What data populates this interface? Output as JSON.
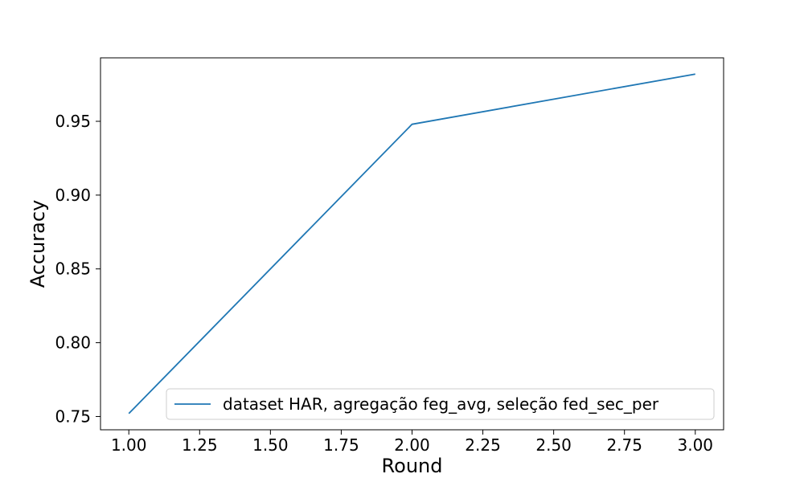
{
  "chart_data": {
    "type": "line",
    "xlabel": "Round",
    "ylabel": "Accuracy",
    "xlim": [
      0.9,
      3.1
    ],
    "ylim": [
      0.741,
      0.993
    ],
    "xticks": [
      1.0,
      1.25,
      1.5,
      1.75,
      2.0,
      2.25,
      2.5,
      2.75,
      3.0
    ],
    "xtick_labels": [
      "1.00",
      "1.25",
      "1.50",
      "1.75",
      "2.00",
      "2.25",
      "2.50",
      "2.75",
      "3.00"
    ],
    "yticks": [
      0.75,
      0.8,
      0.85,
      0.9,
      0.95
    ],
    "ytick_labels": [
      "0.75",
      "0.80",
      "0.85",
      "0.90",
      "0.95"
    ],
    "grid": false,
    "legend_position": "lower-right",
    "series": [
      {
        "name": "dataset HAR, agregação feg_avg, seleção fed_sec_per",
        "color": "#1f77b4",
        "x": [
          1,
          2,
          3
        ],
        "y": [
          0.752,
          0.948,
          0.982
        ]
      }
    ]
  }
}
